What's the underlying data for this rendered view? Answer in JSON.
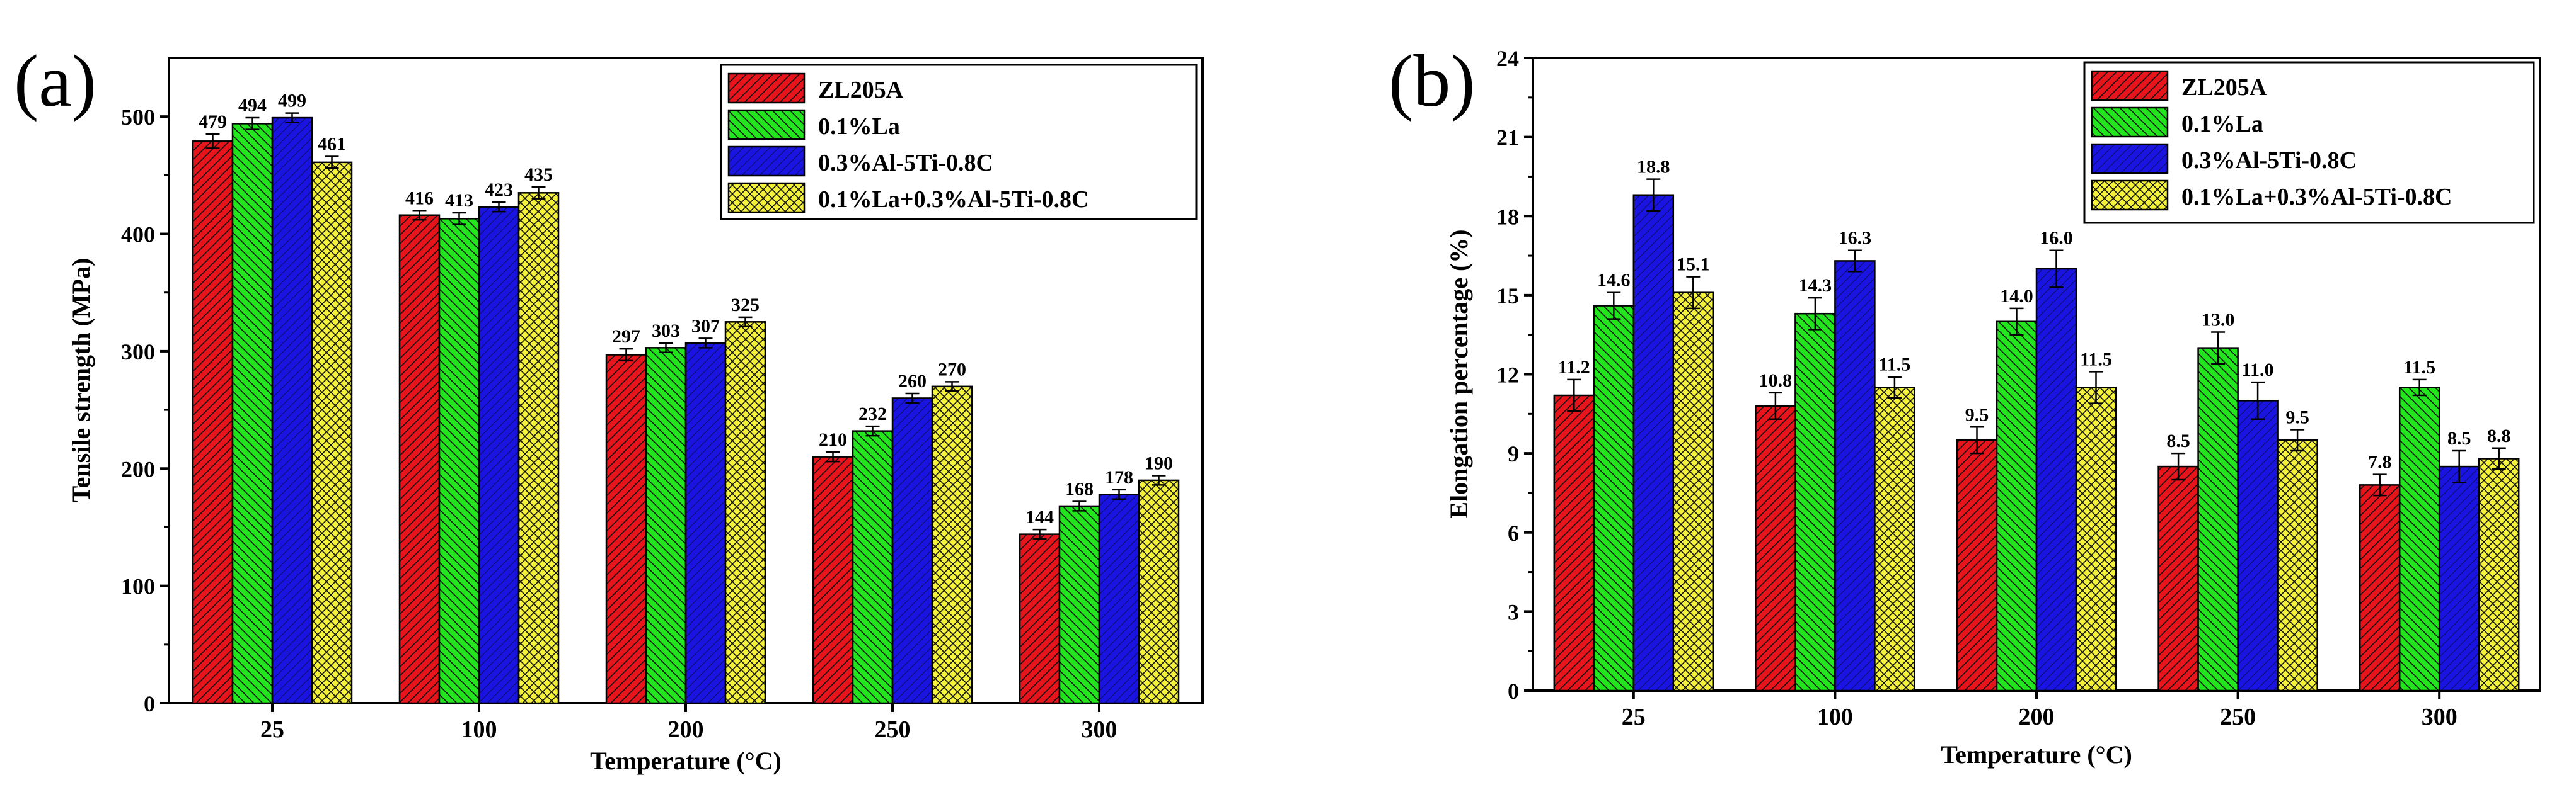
{
  "colors": {
    "ZL205A": "#e8141c",
    "0.1%La": "#22e51e",
    "0.3%Al-5Ti-0.8C": "#1a14e0",
    "0.1%La+0.3%Al-5Ti-0.8C": "#f3f13a"
  },
  "chart_data": [
    {
      "type": "bar",
      "panel_label": "(a)",
      "title": "",
      "xlabel": "Temperature (°C)",
      "ylabel": "Tensile strength (MPa)",
      "categories": [
        "25",
        "100",
        "200",
        "250",
        "300"
      ],
      "ylim": [
        0,
        550
      ],
      "yticks": [
        0,
        100,
        200,
        300,
        400,
        500
      ],
      "ytick_labels": [
        "0",
        "100",
        "200",
        "300",
        "400",
        "500"
      ],
      "legend_position": "top-right",
      "series": [
        {
          "name": "ZL205A",
          "values": [
            479,
            416,
            297,
            210,
            144
          ],
          "labels": [
            "479",
            "416",
            "297",
            "210",
            "144"
          ],
          "errors": [
            6,
            4,
            5,
            4,
            4
          ]
        },
        {
          "name": "0.1%La",
          "values": [
            494,
            413,
            303,
            232,
            168
          ],
          "labels": [
            "494",
            "413",
            "303",
            "232",
            "168"
          ],
          "errors": [
            5,
            5,
            4,
            4,
            4
          ]
        },
        {
          "name": "0.3%Al-5Ti-0.8C",
          "values": [
            499,
            423,
            307,
            260,
            178
          ],
          "labels": [
            "499",
            "423",
            "307",
            "260",
            "178"
          ],
          "errors": [
            4,
            4,
            4,
            4,
            4
          ]
        },
        {
          "name": "0.1%La+0.3%Al-5Ti-0.8C",
          "values": [
            461,
            435,
            325,
            270,
            190
          ],
          "labels": [
            "461",
            "435",
            "325",
            "270",
            "190"
          ],
          "errors": [
            5,
            5,
            4,
            4,
            4
          ]
        }
      ]
    },
    {
      "type": "bar",
      "panel_label": "(b)",
      "title": "",
      "xlabel": "Temperature (°C)",
      "ylabel": "Elongation percentage (%)",
      "categories": [
        "25",
        "100",
        "200",
        "250",
        "300"
      ],
      "ylim": [
        0,
        24
      ],
      "yticks": [
        0,
        3,
        6,
        9,
        12,
        15,
        18,
        21,
        24
      ],
      "ytick_labels": [
        "0",
        "3",
        "6",
        "9",
        "12",
        "15",
        "18",
        "21",
        "24"
      ],
      "legend_position": "top-right",
      "series": [
        {
          "name": "ZL205A",
          "values": [
            11.2,
            10.8,
            9.5,
            8.5,
            7.8
          ],
          "labels": [
            "11.2",
            "10.8",
            "9.5",
            "8.5",
            "7.8"
          ],
          "errors": [
            0.6,
            0.5,
            0.5,
            0.5,
            0.4
          ]
        },
        {
          "name": "0.1%La",
          "values": [
            14.6,
            14.3,
            14.0,
            13.0,
            11.5
          ],
          "labels": [
            "14.6",
            "14.3",
            "14.0",
            "13.0",
            "11.5"
          ],
          "errors": [
            0.5,
            0.6,
            0.5,
            0.6,
            0.3
          ]
        },
        {
          "name": "0.3%Al-5Ti-0.8C",
          "values": [
            18.8,
            16.3,
            16.0,
            11.0,
            8.5
          ],
          "labels": [
            "18.8",
            "16.3",
            "16.0",
            "11.0",
            "8.5"
          ],
          "errors": [
            0.6,
            0.4,
            0.7,
            0.7,
            0.6
          ]
        },
        {
          "name": "0.1%La+0.3%Al-5Ti-0.8C",
          "values": [
            15.1,
            11.5,
            11.5,
            9.5,
            8.8
          ],
          "labels": [
            "15.1",
            "11.5",
            "11.5",
            "9.5",
            "8.8"
          ],
          "errors": [
            0.6,
            0.4,
            0.6,
            0.4,
            0.4
          ]
        }
      ]
    }
  ]
}
